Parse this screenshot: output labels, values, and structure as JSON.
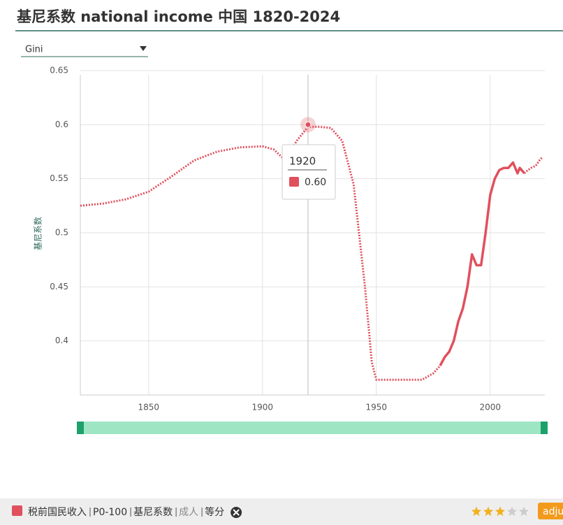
{
  "chart_data": {
    "type": "line",
    "title": "基尼系数 national income 中国 1820-2024",
    "y_label": "基尼系数",
    "x": [
      1820,
      1830,
      1840,
      1850,
      1860,
      1870,
      1880,
      1890,
      1900,
      1905,
      1910,
      1915,
      1920,
      1925,
      1930,
      1935,
      1940,
      1945,
      1948,
      1950,
      1960,
      1970,
      1975,
      1978,
      1980,
      1982,
      1984,
      1986,
      1988,
      1990,
      1992,
      1994,
      1996,
      1998,
      2000,
      2002,
      2004,
      2006,
      2008,
      2010,
      2012,
      2013,
      2015,
      2016,
      2018,
      2020,
      2022,
      2023
    ],
    "series": [
      {
        "style": "dotted",
        "color": "#e0505d",
        "values": [
          0.525,
          0.527,
          0.531,
          0.538,
          0.552,
          0.567,
          0.575,
          0.579,
          0.58,
          0.577,
          0.567,
          0.585,
          0.598,
          0.598,
          0.597,
          0.585,
          0.545,
          0.45,
          0.38,
          0.364,
          0.364,
          0.364,
          0.37,
          0.377,
          null,
          null,
          null,
          null,
          null,
          null,
          null,
          null,
          null,
          null,
          null,
          null,
          null,
          null,
          null,
          null,
          null,
          null,
          0.555,
          0.557,
          0.56,
          0.562,
          0.568,
          0.57
        ]
      },
      {
        "style": "solid",
        "color": "#e0505d",
        "values": [
          null,
          null,
          null,
          null,
          null,
          null,
          null,
          null,
          null,
          null,
          null,
          null,
          null,
          null,
          null,
          null,
          null,
          null,
          null,
          null,
          null,
          null,
          null,
          0.377,
          0.385,
          0.39,
          0.4,
          0.418,
          0.43,
          0.45,
          0.48,
          0.47,
          0.47,
          0.5,
          0.535,
          0.55,
          0.558,
          0.56,
          0.56,
          0.565,
          0.555,
          0.56,
          0.555,
          null,
          null,
          null,
          null,
          null
        ]
      }
    ],
    "xlim": [
      1820,
      2024
    ],
    "xticks": [
      1850,
      1900,
      1950,
      2000
    ],
    "ylim": [
      0.35,
      0.65
    ],
    "yticks": [
      0.4,
      0.45,
      0.5,
      0.55,
      0.6,
      0.65
    ],
    "grid": true
  },
  "selector": "Gini",
  "tooltip": {
    "x": 1920,
    "value": 0.6,
    "value_label": "0.60"
  },
  "legend": {
    "items": [
      "税前国民收入",
      "P0-100",
      "基尼系数",
      "成人",
      "等分"
    ]
  },
  "rating": 3,
  "button": "adju"
}
